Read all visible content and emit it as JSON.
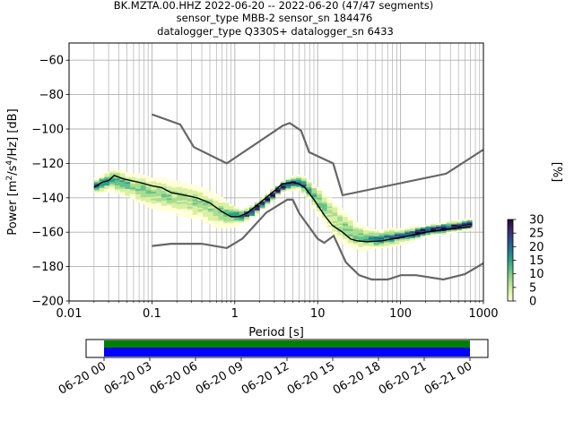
{
  "chart_data": {
    "type": "heatmap",
    "title_lines": [
      "BK.MZTA.00.HHZ   2022-06-20 -- 2022-06-20  (47/47 segments)",
      "sensor_type MBB-2 sensor_sn 184476",
      "datalogger_type Q330S+ datalogger_sn 6433"
    ],
    "xlabel": "Period [s]",
    "ylabel_prefix": "Power [m",
    "ylabel_sup1": "2",
    "ylabel_mid": "/s",
    "ylabel_sup2": "4",
    "ylabel_suffix": "/Hz] [dB]",
    "x_scale": "log",
    "xlim": [
      0.01,
      1000
    ],
    "ylim": [
      -200,
      -50
    ],
    "x_ticks": [
      0.01,
      0.1,
      1,
      10,
      100,
      1000
    ],
    "x_tick_labels": [
      "0.01",
      "0.1",
      "1",
      "10",
      "100",
      "1000"
    ],
    "y_ticks": [
      -200,
      -180,
      -160,
      -140,
      -120,
      -100,
      -80,
      -60
    ],
    "y_tick_labels": [
      "−200",
      "−180",
      "−160",
      "−140",
      "−120",
      "−100",
      "−80",
      "−60"
    ],
    "grid": true,
    "colorbar": {
      "label": "[%]",
      "range": [
        0,
        30
      ],
      "ticks": [
        0,
        5,
        10,
        15,
        20,
        25,
        30
      ],
      "tick_labels": [
        "0",
        "5",
        "10",
        "15",
        "20",
        "25",
        "30"
      ],
      "colormap": [
        "#ffffd9",
        "#d9f0a3",
        "#a9dc8e",
        "#64c28a",
        "#2c9f8b",
        "#1f7a8c",
        "#2b4f8a",
        "#3b2a6b",
        "#22093a"
      ]
    },
    "noise_model_high": [
      [
        0.1,
        -91.5
      ],
      [
        0.22,
        -97.4
      ],
      [
        0.32,
        -110.5
      ],
      [
        0.8,
        -120
      ],
      [
        3.8,
        -98
      ],
      [
        4.6,
        -96.5
      ],
      [
        6.3,
        -101
      ],
      [
        7.9,
        -113.5
      ],
      [
        15.4,
        -120
      ],
      [
        20,
        -138.5
      ],
      [
        354.8,
        -126
      ],
      [
        1000,
        -112
      ]
    ],
    "noise_model_low": [
      [
        0.1,
        -168
      ],
      [
        0.17,
        -166.7
      ],
      [
        0.4,
        -166.7
      ],
      [
        0.8,
        -169.2
      ],
      [
        1.24,
        -163.7
      ],
      [
        2.4,
        -148.6
      ],
      [
        4.3,
        -141.1
      ],
      [
        5,
        -141.1
      ],
      [
        6,
        -149
      ],
      [
        10,
        -163.8
      ],
      [
        12,
        -166.2
      ],
      [
        15.6,
        -162.1
      ],
      [
        21.9,
        -177.5
      ],
      [
        31.6,
        -185
      ],
      [
        45,
        -187.5
      ],
      [
        70,
        -187.5
      ],
      [
        101,
        -185
      ],
      [
        154,
        -185
      ],
      [
        328,
        -187.5
      ],
      [
        600,
        -184.4
      ],
      [
        1000,
        -178
      ]
    ],
    "mode_curve": [
      [
        0.02,
        -134
      ],
      [
        0.025,
        -131
      ],
      [
        0.03,
        -130
      ],
      [
        0.035,
        -127
      ],
      [
        0.045,
        -129
      ],
      [
        0.07,
        -131
      ],
      [
        0.1,
        -133
      ],
      [
        0.13,
        -134
      ],
      [
        0.17,
        -137
      ],
      [
        0.25,
        -138.5
      ],
      [
        0.35,
        -140
      ],
      [
        0.5,
        -143
      ],
      [
        0.7,
        -148
      ],
      [
        0.9,
        -151
      ],
      [
        1.1,
        -151
      ],
      [
        1.4,
        -149
      ],
      [
        2,
        -143
      ],
      [
        3,
        -136
      ],
      [
        3.7,
        -132
      ],
      [
        5,
        -131
      ],
      [
        6,
        -132
      ],
      [
        7,
        -134
      ],
      [
        9,
        -141
      ],
      [
        12,
        -150
      ],
      [
        15,
        -156
      ],
      [
        20,
        -160
      ],
      [
        25,
        -164
      ],
      [
        30,
        -165
      ],
      [
        40,
        -165.5
      ],
      [
        60,
        -165
      ],
      [
        100,
        -163
      ],
      [
        200,
        -160
      ],
      [
        400,
        -158
      ],
      [
        700,
        -157
      ]
    ],
    "density_band": [
      [
        0.02,
        -133,
        4
      ],
      [
        0.025,
        -131,
        5
      ],
      [
        0.03,
        -129,
        6
      ],
      [
        0.04,
        -131,
        7
      ],
      [
        0.06,
        -134,
        8
      ],
      [
        0.1,
        -137,
        9
      ],
      [
        0.2,
        -140,
        10
      ],
      [
        0.35,
        -143,
        10
      ],
      [
        0.55,
        -147,
        10
      ],
      [
        0.8,
        -150,
        7
      ],
      [
        1.1,
        -151,
        4
      ],
      [
        1.5,
        -148,
        3
      ],
      [
        2.2,
        -142,
        3
      ],
      [
        3,
        -136,
        3
      ],
      [
        4,
        -132,
        3
      ],
      [
        5.5,
        -131,
        4
      ],
      [
        7,
        -134,
        5
      ],
      [
        10,
        -143,
        8
      ],
      [
        15,
        -153,
        10
      ],
      [
        22,
        -159,
        9
      ],
      [
        30,
        -163,
        7
      ],
      [
        50,
        -164,
        5
      ],
      [
        100,
        -162,
        4
      ],
      [
        200,
        -159,
        3
      ],
      [
        400,
        -157,
        3
      ],
      [
        700,
        -155,
        3
      ]
    ]
  },
  "timeline": {
    "tick_labels": [
      "06-20 00",
      "06-20 03",
      "06-20 06",
      "06-20 09",
      "06-20 12",
      "06-20 15",
      "06-20 18",
      "06-20 21",
      "06-21 00"
    ],
    "data_bar_color": "#0000ff",
    "gap_bar_color": "#008000"
  }
}
